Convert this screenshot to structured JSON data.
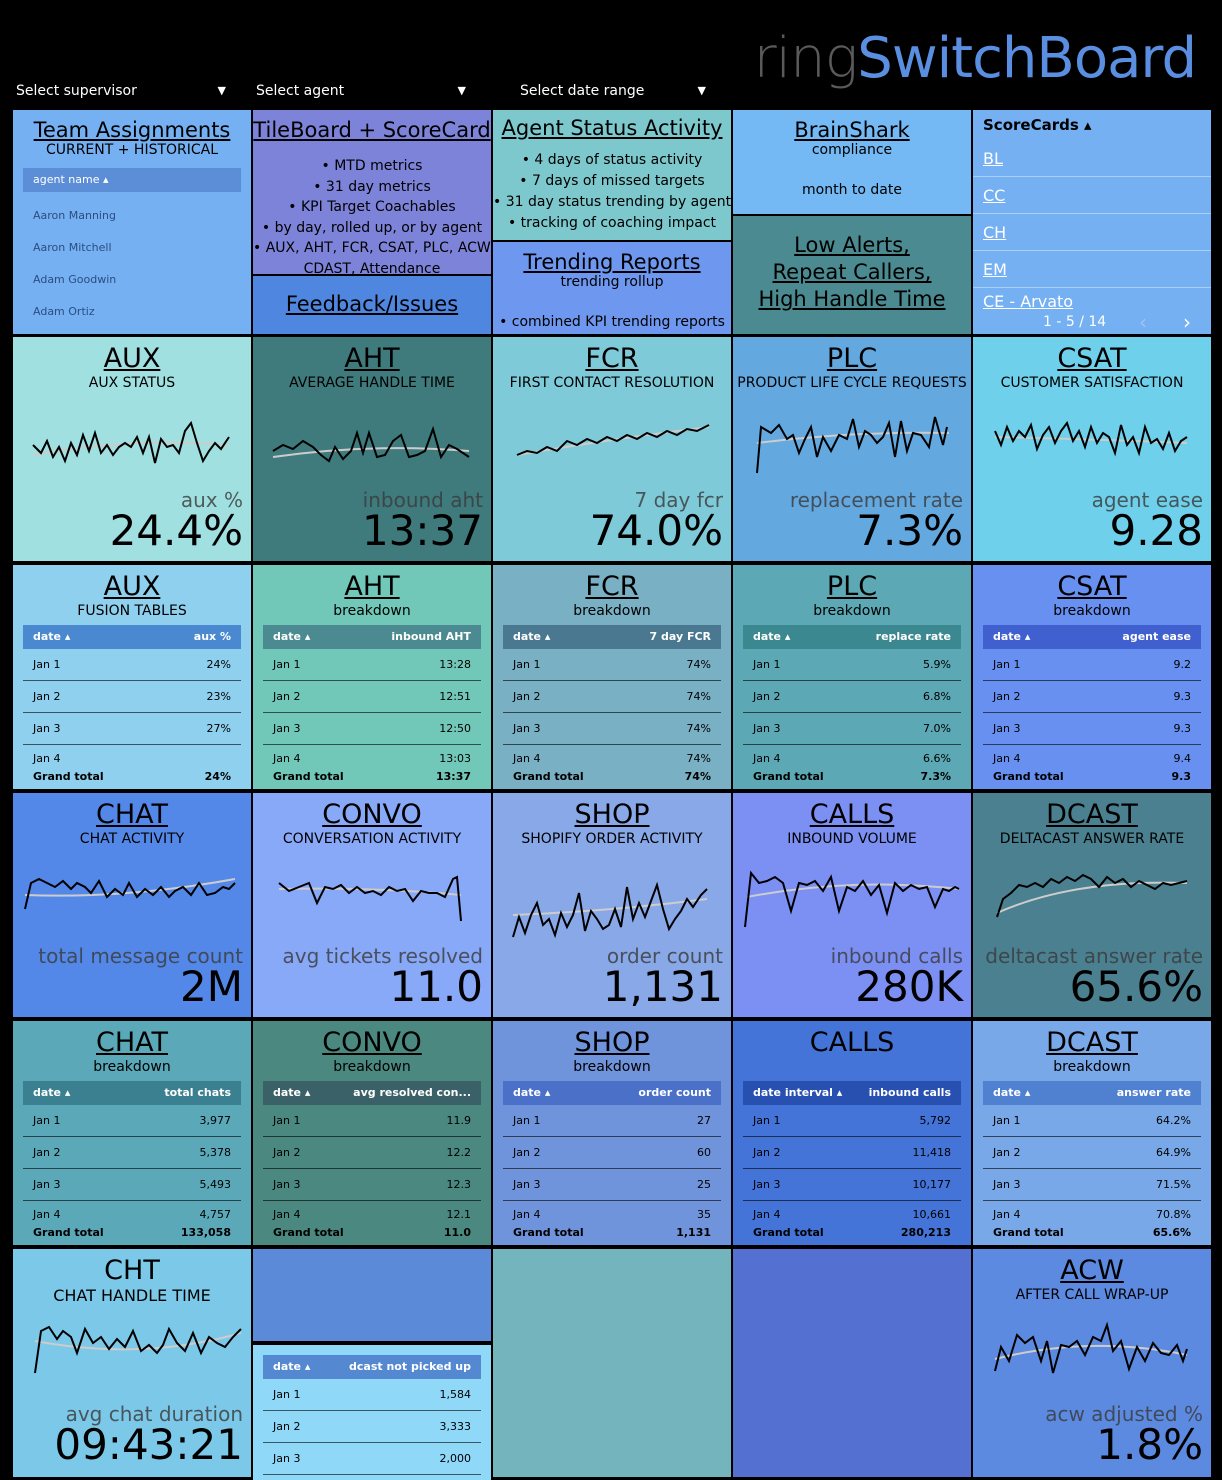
{
  "app": {
    "logo_ring": "ring",
    "logo_name": "SwitchBoard"
  },
  "filters": {
    "supervisor": "Select supervisor",
    "agent": "Select agent",
    "date_range": "Select date range"
  },
  "team": {
    "title": "Team Assignments",
    "subtitle": "CURRENT + HISTORICAL",
    "col": "agent name",
    "agents": [
      "Aaron Manning",
      "Aaron Mitchell",
      "Adam Goodwin",
      "Adam Ortiz"
    ]
  },
  "tileboard": {
    "title": "TileBoard + ScoreCard",
    "bullets": [
      "• MTD metrics",
      "• 31 day metrics",
      "• KPI Target Coachables",
      "• by day, rolled up, or by agent",
      "• AUX, AHT, FCR, CSAT, PLC, ACW,",
      "CDAST, Attendance"
    ]
  },
  "feedback": {
    "title": "Feedback/Issues"
  },
  "agent_status": {
    "title": "Agent Status Activity",
    "bullets": [
      "• 4 days of status activity",
      "• 7 days of missed targets",
      "• 31 day status trending by agent",
      "• tracking of coaching impact"
    ]
  },
  "trending": {
    "title": "Trending Reports",
    "subtitle": "trending rollup",
    "bullet": "• combined KPI trending reports"
  },
  "brainshark": {
    "title": "BrainShark",
    "subtitle": "compliance",
    "note": "month to date"
  },
  "alerts": {
    "line1": "Low Alerts,",
    "line2": "Repeat Callers,",
    "line3": "High Handle Time"
  },
  "scorecards": {
    "title": "ScoreCards",
    "items": [
      "BL",
      "CC",
      "CH",
      "EM",
      "CE - Arvato"
    ],
    "pager": "1 - 5 / 14"
  },
  "kpi": {
    "aux": {
      "title": "AUX",
      "subtitle": "AUX STATUS",
      "label": "aux %",
      "value": "24.4%"
    },
    "aht": {
      "title": "AHT",
      "subtitle": "AVERAGE HANDLE TIME",
      "label": "inbound aht",
      "value": "13:37"
    },
    "fcr": {
      "title": "FCR",
      "subtitle": "FIRST CONTACT RESOLUTION",
      "label": "7 day fcr",
      "value": "74.0%"
    },
    "plc": {
      "title": "PLC",
      "subtitle": "PRODUCT LIFE CYCLE REQUESTS",
      "label": "replacement rate",
      "value": "7.3%"
    },
    "csat": {
      "title": "CSAT",
      "subtitle": "CUSTOMER SATISFACTION",
      "label": "agent ease",
      "value": "9.28"
    },
    "chat": {
      "title": "CHAT",
      "subtitle": "CHAT ACTIVITY",
      "label": "total message count",
      "value": "2M"
    },
    "convo": {
      "title": "CONVO",
      "subtitle": "CONVERSATION ACTIVITY",
      "label": "avg tickets resolved",
      "value": "11.0"
    },
    "shop": {
      "title": "SHOP",
      "subtitle": "SHOPIFY ORDER ACTIVITY",
      "label": "order count",
      "value": "1,131"
    },
    "calls": {
      "title": "CALLS",
      "subtitle": "INBOUND VOLUME",
      "label": "inbound calls",
      "value": "280K"
    },
    "dcast": {
      "title": "DCAST",
      "subtitle": "DELTACAST ANSWER RATE",
      "label": "deltacast answer rate",
      "value": "65.6%"
    },
    "cht": {
      "title": "CHT",
      "subtitle": "CHAT HANDLE TIME",
      "label": "avg chat duration",
      "value": "09:43:21"
    },
    "acw": {
      "title": "ACW",
      "subtitle": "AFTER CALL WRAP-UP",
      "label": "acw adjusted %",
      "value": "1.8%"
    }
  },
  "breakdowns": {
    "aux": {
      "title": "AUX",
      "subtitle": "FUSION TABLES",
      "col1": "date",
      "col2": "aux %",
      "rows": [
        [
          "Jan 1",
          "24%"
        ],
        [
          "Jan 2",
          "23%"
        ],
        [
          "Jan 3",
          "27%"
        ],
        [
          "Jan 4",
          ""
        ]
      ],
      "total_label": "Grand total",
      "total": "24%"
    },
    "aht": {
      "title": "AHT",
      "subtitle": "breakdown",
      "col1": "date",
      "col2": "inbound AHT",
      "rows": [
        [
          "Jan 1",
          "13:28"
        ],
        [
          "Jan 2",
          "12:51"
        ],
        [
          "Jan 3",
          "12:50"
        ],
        [
          "Jan 4",
          "13:03"
        ]
      ],
      "total_label": "Grand total",
      "total": "13:37"
    },
    "fcr": {
      "title": "FCR",
      "subtitle": "breakdown",
      "col1": "date",
      "col2": "7 day FCR",
      "rows": [
        [
          "Jan 1",
          "74%"
        ],
        [
          "Jan 2",
          "74%"
        ],
        [
          "Jan 3",
          "74%"
        ],
        [
          "Jan 4",
          "74%"
        ]
      ],
      "total_label": "Grand total",
      "total": "74%"
    },
    "plc": {
      "title": "PLC",
      "subtitle": "breakdown",
      "col1": "date",
      "col2": "replace rate",
      "rows": [
        [
          "Jan 1",
          "5.9%"
        ],
        [
          "Jan 2",
          "6.8%"
        ],
        [
          "Jan 3",
          "7.0%"
        ],
        [
          "Jan 4",
          "6.6%"
        ]
      ],
      "total_label": "Grand total",
      "total": "7.3%"
    },
    "csat": {
      "title": "CSAT",
      "subtitle": "breakdown",
      "col1": "date",
      "col2": "agent ease",
      "rows": [
        [
          "Jan 1",
          "9.2"
        ],
        [
          "Jan 2",
          "9.3"
        ],
        [
          "Jan 3",
          "9.3"
        ],
        [
          "Jan 4",
          "9.4"
        ]
      ],
      "total_label": "Grand total",
      "total": "9.3"
    },
    "chat": {
      "title": "CHAT",
      "subtitle": "breakdown",
      "col1": "date",
      "col2": "total chats",
      "rows": [
        [
          "Jan 1",
          "3,977"
        ],
        [
          "Jan 2",
          "5,378"
        ],
        [
          "Jan 3",
          "5,493"
        ],
        [
          "Jan 4",
          "4,757"
        ]
      ],
      "total_label": "Grand total",
      "total": "133,058"
    },
    "convo": {
      "title": "CONVO",
      "subtitle": "breakdown",
      "col1": "date",
      "col2": "avg resolved con...",
      "rows": [
        [
          "Jan 1",
          "11.9"
        ],
        [
          "Jan 2",
          "12.2"
        ],
        [
          "Jan 3",
          "12.3"
        ],
        [
          "Jan 4",
          "12.1"
        ]
      ],
      "total_label": "Grand total",
      "total": "11.0"
    },
    "shop": {
      "title": "SHOP",
      "subtitle": "breakdown",
      "col1": "date",
      "col2": "order count",
      "rows": [
        [
          "Jan 1",
          "27"
        ],
        [
          "Jan 2",
          "60"
        ],
        [
          "Jan 3",
          "25"
        ],
        [
          "Jan 4",
          "35"
        ]
      ],
      "total_label": "Grand total",
      "total": "1,131"
    },
    "calls": {
      "title": "CALLS",
      "subtitle": "",
      "col1": "date interval",
      "col2": "inbound calls",
      "rows": [
        [
          "Jan 1",
          "5,792"
        ],
        [
          "Jan 2",
          "11,418"
        ],
        [
          "Jan 3",
          "10,177"
        ],
        [
          "Jan 4",
          "10,661"
        ]
      ],
      "total_label": "Grand total",
      "total": "280,213"
    },
    "dcast": {
      "title": "DCAST",
      "subtitle": "breakdown",
      "col1": "date",
      "col2": "answer rate",
      "rows": [
        [
          "Jan 1",
          "64.2%"
        ],
        [
          "Jan 2",
          "64.9%"
        ],
        [
          "Jan 3",
          "71.5%"
        ],
        [
          "Jan 4",
          "70.8%"
        ]
      ],
      "total_label": "Grand total",
      "total": "65.6%"
    }
  },
  "dcast_missed": {
    "col1": "date",
    "col2": "dcast not picked up",
    "rows": [
      [
        "Jan 1",
        "1,584"
      ],
      [
        "Jan 2",
        "3,333"
      ],
      [
        "Jan 3",
        "2,000"
      ]
    ]
  }
}
